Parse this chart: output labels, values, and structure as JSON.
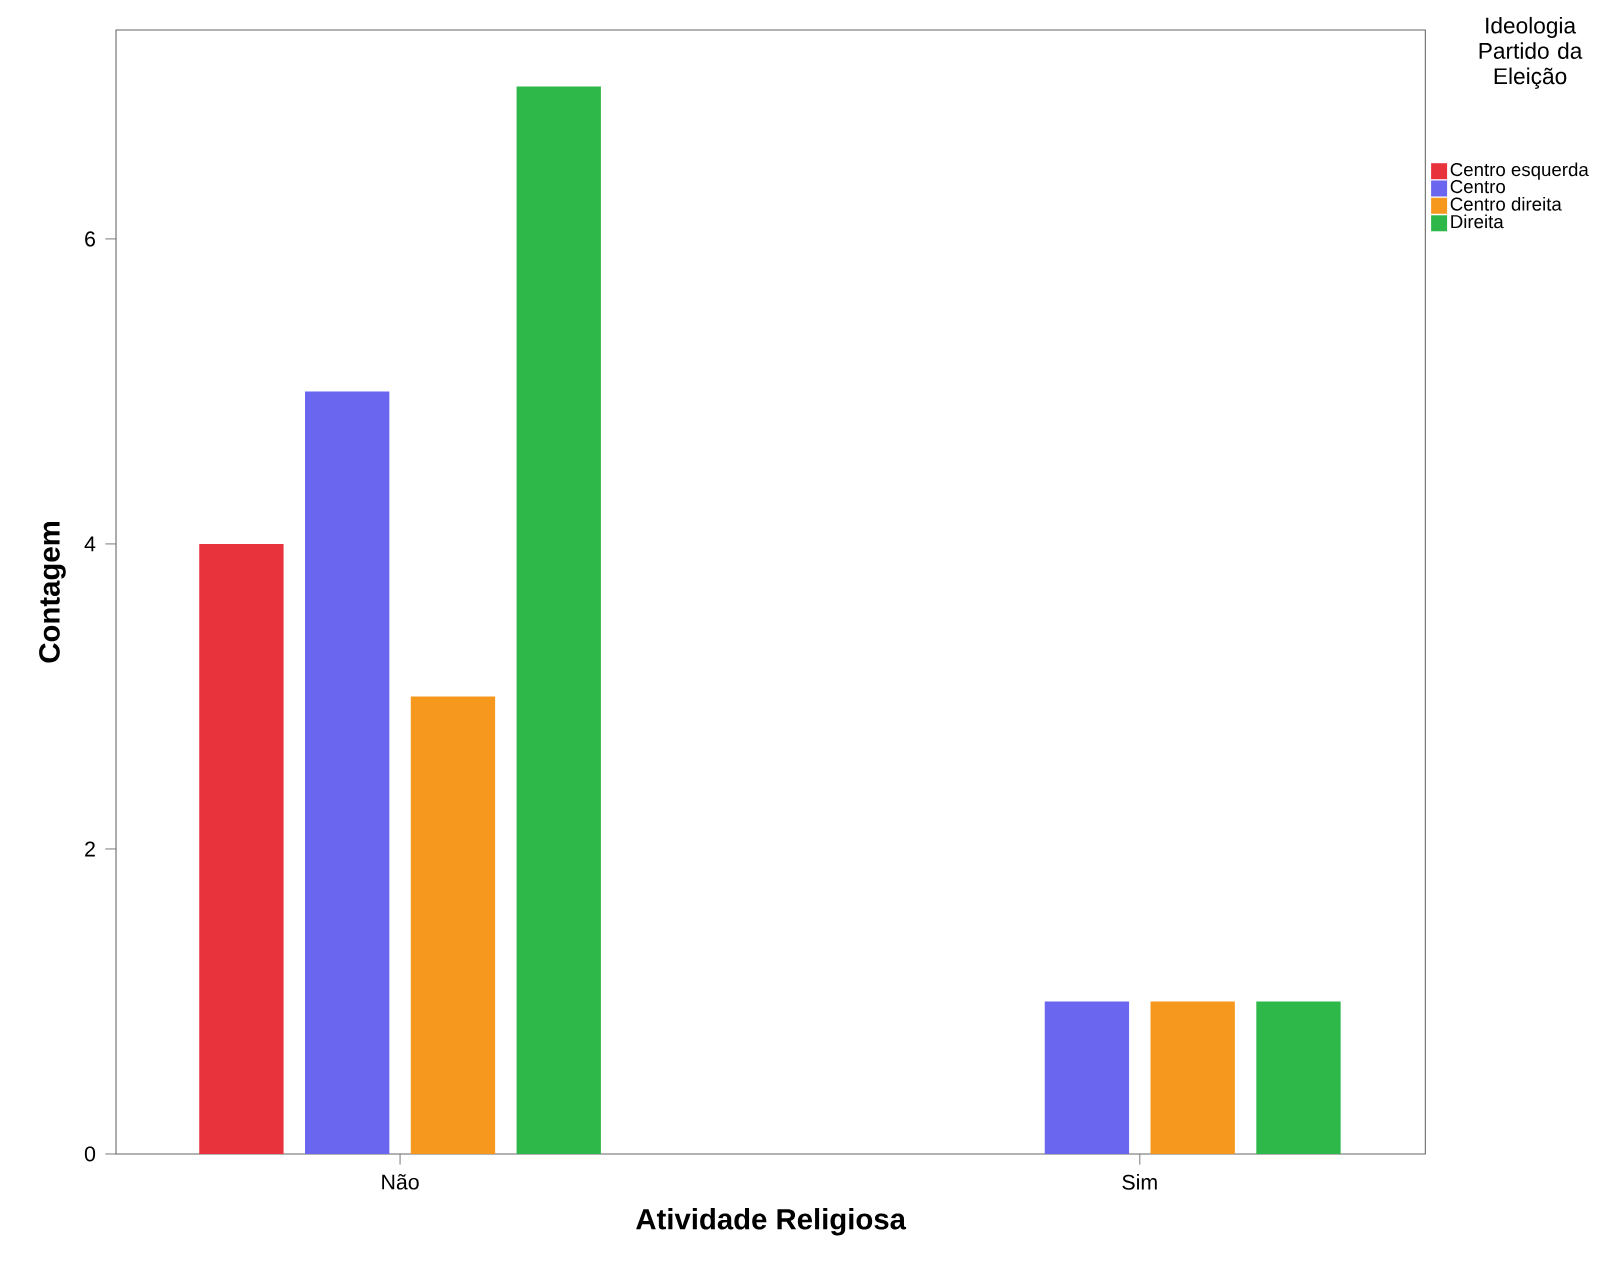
{
  "chart_data": {
    "type": "bar",
    "xlabel": "Atividade Religiosa",
    "ylabel": "Contagem",
    "legend_title": "Ideologia Partido da Eleição",
    "categories": [
      "Não",
      "Sim"
    ],
    "series": [
      {
        "name": "Centro esquerda",
        "color": "#e8323c",
        "values": [
          4,
          null
        ]
      },
      {
        "name": "Centro",
        "color": "#6b66f0",
        "values": [
          5,
          1
        ]
      },
      {
        "name": "Centro direita",
        "color": "#f7981e",
        "values": [
          3,
          1
        ]
      },
      {
        "name": "Direita",
        "color": "#2eb84a",
        "values": [
          7,
          1
        ]
      }
    ],
    "ylim": [
      0,
      7.37
    ],
    "yticks": [
      0,
      2,
      4,
      6
    ],
    "grid": false,
    "legend": "top right"
  }
}
